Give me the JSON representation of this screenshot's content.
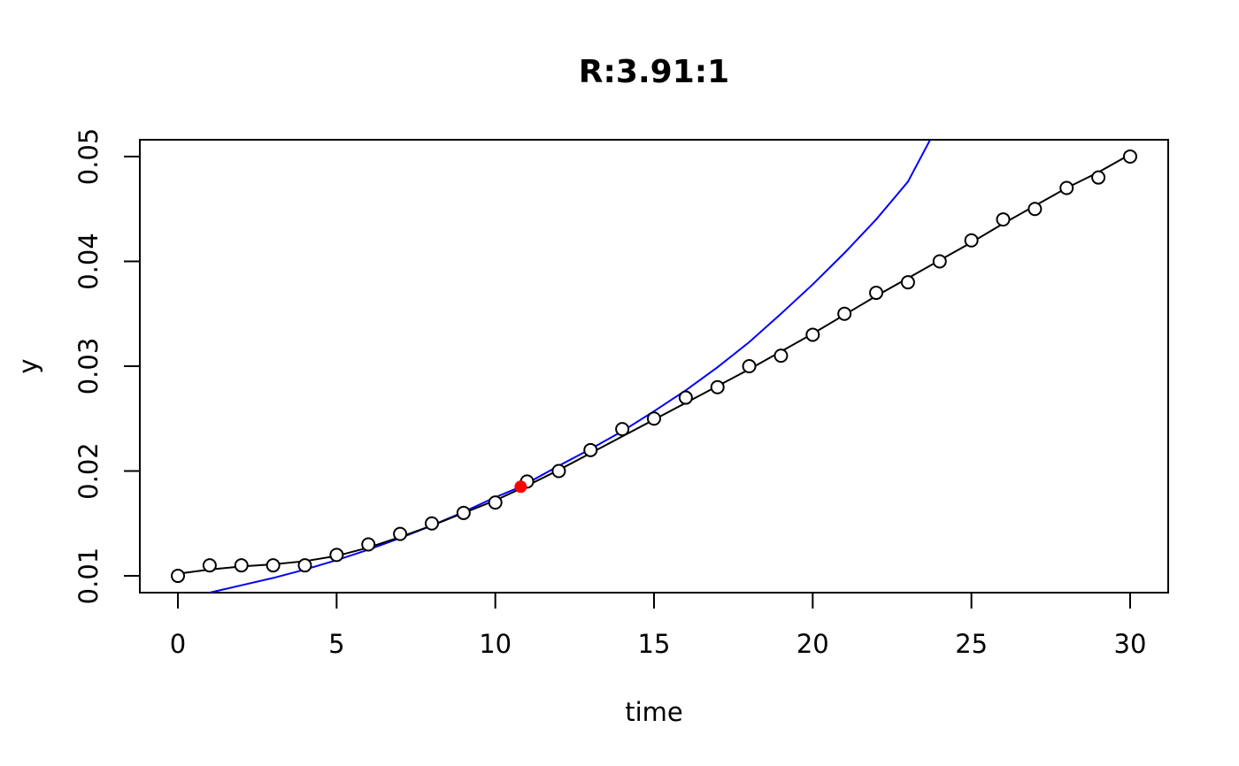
{
  "chart_data": {
    "type": "scatter",
    "title": "R:3.91:1",
    "xlabel": "time",
    "ylabel": "y",
    "xlim": [
      -1.2,
      31.2
    ],
    "ylim": [
      0.0084,
      0.0516
    ],
    "xticks": [
      0,
      5,
      10,
      15,
      20,
      25,
      30
    ],
    "yticks": [
      0.01,
      0.02,
      0.03,
      0.04,
      0.05
    ],
    "xtick_labels": [
      "0",
      "5",
      "10",
      "15",
      "20",
      "25",
      "30"
    ],
    "ytick_labels": [
      "0.01",
      "0.02",
      "0.03",
      "0.04",
      "0.05"
    ],
    "grid": false,
    "series": [
      {
        "style": "points-and-line",
        "color": "#000000",
        "x": [
          0,
          1,
          2,
          3,
          4,
          5,
          6,
          7,
          8,
          9,
          10,
          11,
          12,
          13,
          14,
          15,
          16,
          17,
          18,
          19,
          20,
          21,
          22,
          23,
          24,
          25,
          26,
          27,
          28,
          29,
          30
        ],
        "y": [
          0.01,
          0.011,
          0.011,
          0.011,
          0.011,
          0.012,
          0.013,
          0.014,
          0.015,
          0.016,
          0.017,
          0.019,
          0.02,
          0.022,
          0.024,
          0.025,
          0.027,
          0.028,
          0.03,
          0.031,
          0.033,
          0.035,
          0.037,
          0.038,
          0.04,
          0.042,
          0.044,
          0.045,
          0.047,
          0.048,
          0.05
        ],
        "smooth_y": [
          0.0102,
          0.0106,
          0.0109,
          0.0111,
          0.0114,
          0.0119,
          0.0127,
          0.0137,
          0.0148,
          0.016,
          0.0172,
          0.0186,
          0.0201,
          0.0217,
          0.0233,
          0.0249,
          0.0265,
          0.0281,
          0.0297,
          0.0314,
          0.0331,
          0.0349,
          0.0367,
          0.0384,
          0.0401,
          0.0418,
          0.0436,
          0.0453,
          0.047,
          0.0485,
          0.0502
        ]
      },
      {
        "style": "curve",
        "color": "#0000ff",
        "x": [
          1,
          2,
          3,
          4,
          5,
          6,
          7,
          8,
          9,
          10,
          10.8,
          12,
          13,
          14,
          15,
          16,
          17,
          18,
          19,
          20,
          21,
          22,
          23,
          23.7
        ],
        "y": [
          0.0084,
          0.0091,
          0.0098,
          0.0106,
          0.0115,
          0.0125,
          0.0136,
          0.0148,
          0.0161,
          0.0175,
          0.0185,
          0.0205,
          0.0221,
          0.0238,
          0.0257,
          0.0277,
          0.0299,
          0.0323,
          0.035,
          0.0378,
          0.0408,
          0.044,
          0.0476,
          0.0516
        ]
      }
    ],
    "highlight_point": {
      "x": 10.8,
      "y": 0.0185,
      "color": "#ff0000"
    }
  }
}
